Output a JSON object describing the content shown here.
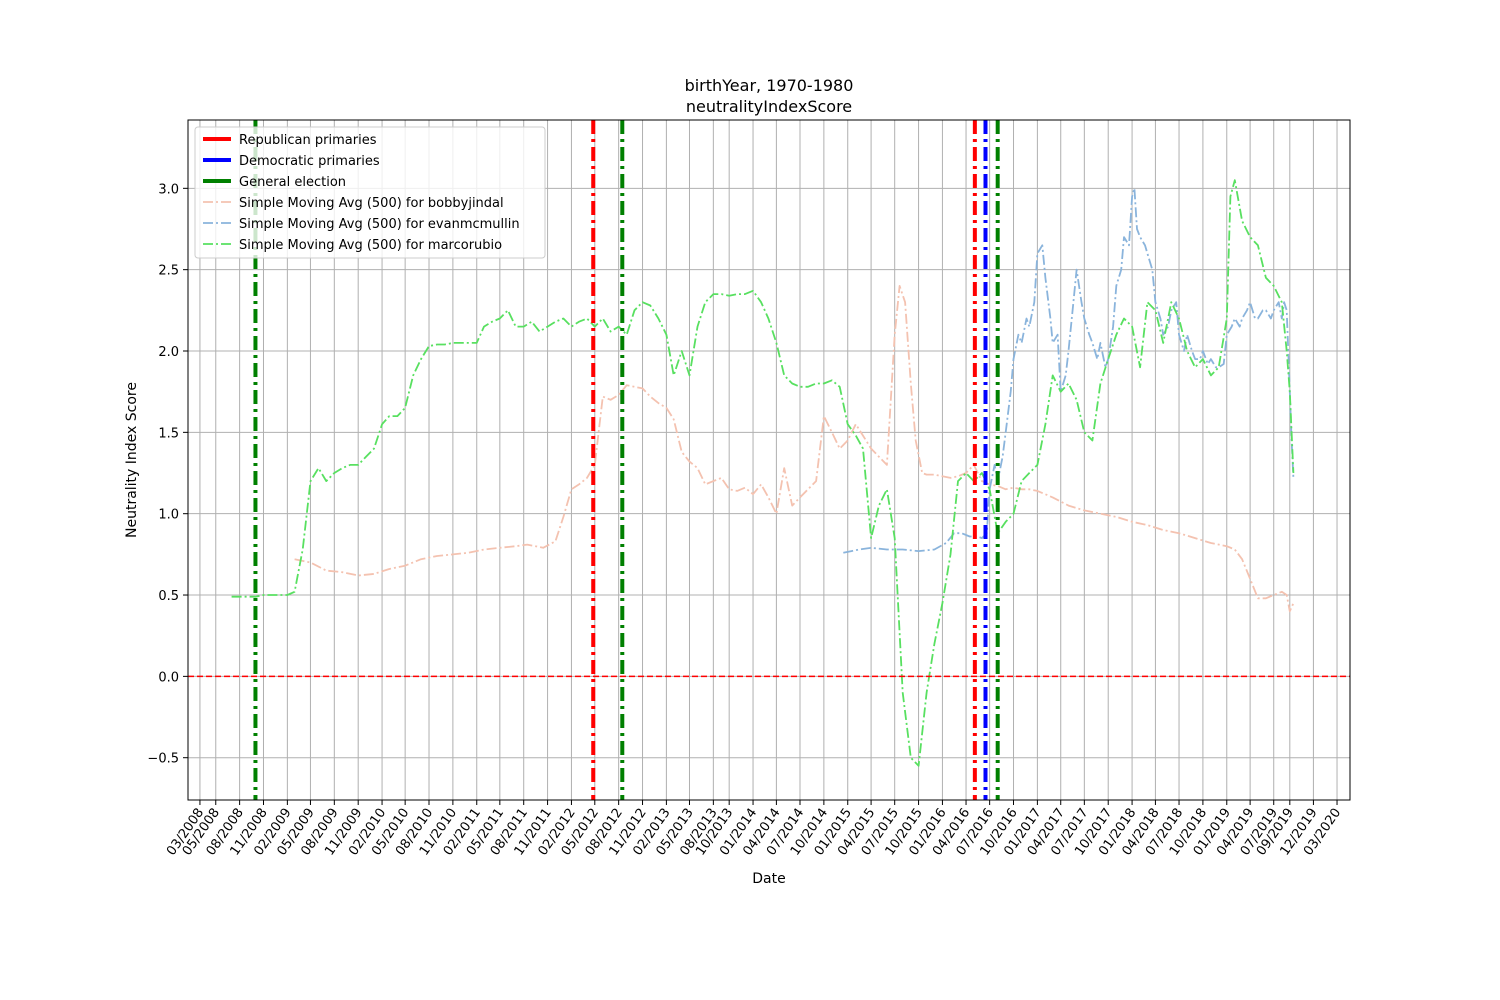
{
  "chart_data": {
    "type": "line",
    "title": "birthYear, 1970-1980",
    "subtitle": "neutralityIndexScore",
    "xlabel": "Date",
    "ylabel": "Neutrality Index Score",
    "ylim": [
      -0.76,
      3.42
    ],
    "yticks": [
      -0.5,
      0.0,
      0.5,
      1.0,
      1.5,
      2.0,
      2.5,
      3.0
    ],
    "ytick_labels": [
      "−0.5",
      "0.0",
      "0.5",
      "1.0",
      "1.5",
      "2.0",
      "2.5",
      "3.0"
    ],
    "xlim": [
      "2008-01-15",
      "2020-04-20"
    ],
    "xticks": [
      "2008-03-01",
      "2008-05-01",
      "2008-08-01",
      "2008-11-01",
      "2009-02-01",
      "2009-05-01",
      "2009-08-01",
      "2009-11-01",
      "2010-02-01",
      "2010-05-01",
      "2010-08-01",
      "2010-11-01",
      "2011-02-01",
      "2011-05-01",
      "2011-08-01",
      "2011-11-01",
      "2012-02-01",
      "2012-05-01",
      "2012-08-01",
      "2012-11-01",
      "2013-02-01",
      "2013-05-01",
      "2013-08-01",
      "2013-10-01",
      "2014-01-01",
      "2014-04-01",
      "2014-07-01",
      "2014-10-01",
      "2015-01-01",
      "2015-04-01",
      "2015-07-01",
      "2015-10-01",
      "2016-01-01",
      "2016-04-01",
      "2016-07-01",
      "2016-10-01",
      "2017-01-01",
      "2017-04-01",
      "2017-07-01",
      "2017-10-01",
      "2018-01-01",
      "2018-04-01",
      "2018-07-01",
      "2018-10-01",
      "2019-01-01",
      "2019-04-01",
      "2019-07-01",
      "2019-09-01",
      "2019-12-01",
      "2020-03-01"
    ],
    "xtick_labels": [
      "03/2008",
      "05/2008",
      "08/2008",
      "11/2008",
      "02/2009",
      "05/2009",
      "08/2009",
      "11/2009",
      "02/2010",
      "05/2010",
      "08/2010",
      "11/2010",
      "02/2011",
      "05/2011",
      "08/2011",
      "11/2011",
      "02/2012",
      "05/2012",
      "08/2012",
      "11/2012",
      "02/2013",
      "05/2013",
      "08/2013",
      "10/2013",
      "01/2014",
      "04/2014",
      "07/2014",
      "10/2014",
      "01/2015",
      "04/2015",
      "07/2015",
      "10/2015",
      "01/2016",
      "04/2016",
      "07/2016",
      "10/2016",
      "01/2017",
      "04/2017",
      "07/2017",
      "10/2017",
      "01/2018",
      "04/2018",
      "07/2018",
      "10/2018",
      "01/2019",
      "04/2019",
      "07/2019",
      "09/2019",
      "12/2019",
      "03/2020"
    ],
    "grid": true,
    "legend_position": "upper-left",
    "zero_line": {
      "y": 0.0,
      "color": "#ff0000",
      "style": "dashed"
    },
    "events": [
      {
        "name": "Republican primaries",
        "color": "#ff0000",
        "dates": [
          "2012-04-25",
          "2016-05-05"
        ]
      },
      {
        "name": "Democratic primaries",
        "color": "#0000ff",
        "dates": [
          "2016-06-15"
        ]
      },
      {
        "name": "General election",
        "color": "#008000",
        "dates": [
          "2008-10-01",
          "2012-08-15",
          "2016-08-01"
        ]
      }
    ],
    "series": [
      {
        "name": "Simple Moving Avg (500) for bobbyjindal",
        "color": "#f4c2b0",
        "x": [
          "2009-03-01",
          "2009-05-01",
          "2009-07-01",
          "2009-09-01",
          "2009-11-01",
          "2010-01-01",
          "2010-03-01",
          "2010-05-01",
          "2010-07-01",
          "2010-09-01",
          "2010-11-01",
          "2011-01-01",
          "2011-03-01",
          "2011-05-01",
          "2011-07-01",
          "2011-08-15",
          "2011-09-15",
          "2011-10-15",
          "2011-12-01",
          "2012-01-01",
          "2012-02-01",
          "2012-03-01",
          "2012-04-01",
          "2012-05-01",
          "2012-06-01",
          "2012-07-01",
          "2012-08-01",
          "2012-09-01",
          "2012-10-01",
          "2012-11-01",
          "2012-12-01",
          "2013-01-01",
          "2013-02-01",
          "2013-03-01",
          "2013-04-01",
          "2013-05-01",
          "2013-06-01",
          "2013-07-01",
          "2013-08-01",
          "2013-09-01",
          "2013-10-01",
          "2013-11-01",
          "2013-12-01",
          "2014-01-01",
          "2014-02-01",
          "2014-03-01",
          "2014-04-01",
          "2014-05-01",
          "2014-06-01",
          "2014-07-01",
          "2014-08-01",
          "2014-09-01",
          "2014-10-01",
          "2014-11-01",
          "2014-12-01",
          "2015-01-01",
          "2015-02-01",
          "2015-03-01",
          "2015-04-01",
          "2015-05-01",
          "2015-06-01",
          "2015-07-01",
          "2015-07-20",
          "2015-08-10",
          "2015-09-01",
          "2015-09-20",
          "2015-10-15",
          "2015-11-01",
          "2015-12-01",
          "2016-01-01",
          "2016-02-01",
          "2016-03-01",
          "2016-04-01",
          "2016-05-01",
          "2016-06-01",
          "2016-07-01",
          "2016-08-01",
          "2016-09-01",
          "2016-10-01",
          "2016-11-01",
          "2016-12-01",
          "2017-01-01",
          "2017-03-01",
          "2017-05-01",
          "2017-07-01",
          "2017-09-01",
          "2017-11-01",
          "2018-01-01",
          "2018-03-01",
          "2018-05-01",
          "2018-07-01",
          "2018-09-01",
          "2018-11-01",
          "2019-01-01",
          "2019-02-01",
          "2019-03-01",
          "2019-04-01",
          "2019-05-01",
          "2019-06-01",
          "2019-07-01",
          "2019-08-01",
          "2019-08-20",
          "2019-09-01",
          "2019-09-15"
        ],
        "values": [
          0.72,
          0.7,
          0.65,
          0.64,
          0.62,
          0.63,
          0.66,
          0.68,
          0.72,
          0.74,
          0.75,
          0.76,
          0.78,
          0.79,
          0.8,
          0.81,
          0.8,
          0.79,
          0.83,
          0.98,
          1.15,
          1.18,
          1.22,
          1.3,
          1.72,
          1.7,
          1.73,
          1.79,
          1.78,
          1.77,
          1.72,
          1.68,
          1.65,
          1.58,
          1.38,
          1.32,
          1.28,
          1.18,
          1.2,
          1.22,
          1.15,
          1.14,
          1.16,
          1.12,
          1.18,
          1.1,
          1.0,
          1.28,
          1.05,
          1.1,
          1.15,
          1.2,
          1.6,
          1.5,
          1.4,
          1.45,
          1.55,
          1.48,
          1.4,
          1.35,
          1.3,
          2.1,
          2.4,
          2.3,
          1.8,
          1.45,
          1.25,
          1.24,
          1.24,
          1.23,
          1.22,
          1.23,
          1.25,
          1.3,
          1.2,
          1.18,
          1.17,
          1.15,
          1.16,
          1.15,
          1.15,
          1.14,
          1.1,
          1.05,
          1.02,
          1.0,
          0.98,
          0.95,
          0.93,
          0.9,
          0.88,
          0.85,
          0.82,
          0.8,
          0.78,
          0.72,
          0.6,
          0.48,
          0.48,
          0.5,
          0.52,
          0.5,
          0.4,
          0.45
        ]
      },
      {
        "name": "Simple Moving Avg (500) for evanmcmullin",
        "color": "#8ab4dc",
        "x": [
          "2014-12-15",
          "2015-01-15",
          "2015-02-15",
          "2015-04-01",
          "2015-06-01",
          "2015-08-01",
          "2015-10-01",
          "2015-12-01",
          "2016-01-15",
          "2016-02-15",
          "2016-03-15",
          "2016-04-15",
          "2016-05-15",
          "2016-06-01",
          "2016-06-20",
          "2016-07-01",
          "2016-07-20",
          "2016-08-01",
          "2016-08-20",
          "2016-09-01",
          "2016-09-20",
          "2016-10-01",
          "2016-10-20",
          "2016-11-01",
          "2016-11-20",
          "2016-12-01",
          "2016-12-20",
          "2017-01-01",
          "2017-01-20",
          "2017-02-01",
          "2017-02-20",
          "2017-03-01",
          "2017-03-20",
          "2017-04-01",
          "2017-04-20",
          "2017-05-01",
          "2017-05-20",
          "2017-06-01",
          "2017-06-20",
          "2017-07-01",
          "2017-07-20",
          "2017-08-01",
          "2017-08-20",
          "2017-09-01",
          "2017-09-20",
          "2017-10-01",
          "2017-10-20",
          "2017-11-01",
          "2017-11-20",
          "2017-12-01",
          "2017-12-20",
          "2018-01-01",
          "2018-01-10",
          "2018-01-20",
          "2018-02-01",
          "2018-02-20",
          "2018-03-01",
          "2018-03-20",
          "2018-04-01",
          "2018-04-20",
          "2018-05-01",
          "2018-05-20",
          "2018-06-01",
          "2018-06-20",
          "2018-07-01",
          "2018-07-20",
          "2018-08-01",
          "2018-08-20",
          "2018-09-01",
          "2018-09-20",
          "2018-10-01",
          "2018-10-20",
          "2018-11-01",
          "2018-11-20",
          "2018-12-01",
          "2018-12-20",
          "2019-01-01",
          "2019-01-20",
          "2019-02-01",
          "2019-02-20",
          "2019-03-01",
          "2019-03-20",
          "2019-04-01",
          "2019-04-20",
          "2019-05-01",
          "2019-05-20",
          "2019-06-01",
          "2019-06-20",
          "2019-07-01",
          "2019-07-20",
          "2019-08-01",
          "2019-08-10",
          "2019-08-20",
          "2019-09-01",
          "2019-09-08",
          "2019-09-15"
        ],
        "values": [
          0.76,
          0.77,
          0.78,
          0.79,
          0.78,
          0.78,
          0.77,
          0.78,
          0.82,
          0.88,
          0.88,
          0.86,
          0.86,
          0.85,
          0.88,
          1.15,
          1.3,
          1.2,
          1.35,
          1.5,
          1.75,
          1.95,
          2.1,
          2.05,
          2.2,
          2.15,
          2.3,
          2.6,
          2.65,
          2.45,
          2.2,
          2.05,
          2.1,
          1.75,
          1.85,
          2.0,
          2.3,
          2.5,
          2.3,
          2.2,
          2.1,
          2.05,
          1.95,
          2.05,
          1.9,
          1.95,
          2.15,
          2.4,
          2.5,
          2.7,
          2.65,
          2.95,
          3.0,
          2.75,
          2.7,
          2.65,
          2.6,
          2.5,
          2.3,
          2.2,
          2.1,
          2.15,
          2.25,
          2.3,
          2.1,
          2.0,
          2.1,
          2.0,
          1.95,
          1.95,
          2.0,
          1.92,
          1.95,
          1.9,
          1.9,
          1.92,
          2.1,
          2.15,
          2.2,
          2.15,
          2.2,
          2.25,
          2.3,
          2.2,
          2.2,
          2.25,
          2.25,
          2.2,
          2.25,
          2.3,
          2.2,
          2.3,
          2.25,
          1.75,
          1.45,
          1.22
        ]
      },
      {
        "name": "Simple Moving Avg (500) for marcorubio",
        "color": "#58e060",
        "x": [
          "2008-07-01",
          "2008-08-01",
          "2008-09-01",
          "2008-10-01",
          "2008-11-01",
          "2008-12-01",
          "2009-01-01",
          "2009-02-01",
          "2009-03-01",
          "2009-04-01",
          "2009-05-01",
          "2009-06-01",
          "2009-07-01",
          "2009-08-01",
          "2009-09-01",
          "2009-10-01",
          "2009-11-01",
          "2009-12-01",
          "2010-01-01",
          "2010-02-01",
          "2010-03-01",
          "2010-04-01",
          "2010-05-01",
          "2010-06-01",
          "2010-07-01",
          "2010-08-01",
          "2010-09-01",
          "2010-10-01",
          "2010-11-01",
          "2011-01-01",
          "2011-02-01",
          "2011-03-01",
          "2011-04-01",
          "2011-05-01",
          "2011-06-01",
          "2011-07-01",
          "2011-08-01",
          "2011-09-01",
          "2011-10-01",
          "2011-11-01",
          "2011-12-01",
          "2012-01-01",
          "2012-02-01",
          "2012-03-01",
          "2012-04-01",
          "2012-05-01",
          "2012-06-01",
          "2012-07-01",
          "2012-08-01",
          "2012-09-01",
          "2012-10-01",
          "2012-11-01",
          "2012-12-01",
          "2013-01-01",
          "2013-02-01",
          "2013-03-01",
          "2013-04-01",
          "2013-05-01",
          "2013-06-01",
          "2013-07-01",
          "2013-08-01",
          "2013-09-01",
          "2013-10-01",
          "2013-11-01",
          "2013-12-01",
          "2014-01-01",
          "2014-02-01",
          "2014-03-01",
          "2014-04-01",
          "2014-05-01",
          "2014-06-01",
          "2014-07-01",
          "2014-08-01",
          "2014-09-01",
          "2014-10-01",
          "2014-11-01",
          "2014-12-01",
          "2015-01-01",
          "2015-02-01",
          "2015-03-01",
          "2015-04-01",
          "2015-05-01",
          "2015-06-01",
          "2015-07-01",
          "2015-08-01",
          "2015-09-01",
          "2015-10-01",
          "2015-11-01",
          "2015-12-01",
          "2016-01-01",
          "2016-02-01",
          "2016-03-01",
          "2016-04-01",
          "2016-05-01",
          "2016-06-01",
          "2016-07-01",
          "2016-08-01",
          "2016-09-01",
          "2016-10-01",
          "2016-11-01",
          "2016-12-01",
          "2017-01-01",
          "2017-02-01",
          "2017-03-01",
          "2017-04-01",
          "2017-05-01",
          "2017-06-01",
          "2017-07-01",
          "2017-08-01",
          "2017-09-01",
          "2017-10-01",
          "2017-11-01",
          "2017-12-01",
          "2018-01-01",
          "2018-02-01",
          "2018-03-01",
          "2018-04-01",
          "2018-05-01",
          "2018-06-01",
          "2018-07-01",
          "2018-08-01",
          "2018-09-01",
          "2018-10-01",
          "2018-11-01",
          "2018-12-01",
          "2019-01-01",
          "2019-01-15",
          "2019-02-01",
          "2019-03-01",
          "2019-04-01",
          "2019-05-01",
          "2019-06-01",
          "2019-07-01",
          "2019-08-01",
          "2019-08-20",
          "2019-09-01",
          "2019-09-15"
        ],
        "values": [
          0.49,
          0.49,
          0.49,
          0.49,
          0.5,
          0.5,
          0.5,
          0.5,
          0.52,
          0.78,
          1.2,
          1.28,
          1.2,
          1.25,
          1.28,
          1.3,
          1.3,
          1.35,
          1.4,
          1.55,
          1.6,
          1.6,
          1.65,
          1.85,
          1.95,
          2.03,
          2.04,
          2.04,
          2.05,
          2.05,
          2.05,
          2.15,
          2.18,
          2.2,
          2.25,
          2.15,
          2.15,
          2.18,
          2.12,
          2.15,
          2.18,
          2.2,
          2.15,
          2.18,
          2.2,
          2.15,
          2.2,
          2.12,
          2.15,
          2.1,
          2.25,
          2.3,
          2.28,
          2.2,
          2.1,
          1.85,
          2.0,
          1.85,
          2.15,
          2.3,
          2.35,
          2.35,
          2.34,
          2.35,
          2.35,
          2.37,
          2.3,
          2.2,
          2.05,
          1.85,
          1.8,
          1.78,
          1.78,
          1.8,
          1.8,
          1.82,
          1.78,
          1.55,
          1.48,
          1.4,
          0.85,
          1.05,
          1.15,
          0.85,
          -0.1,
          -0.5,
          -0.55,
          -0.1,
          0.2,
          0.45,
          0.75,
          1.2,
          1.25,
          1.2,
          1.25,
          1.15,
          0.88,
          0.95,
          1.0,
          1.2,
          1.25,
          1.3,
          1.55,
          1.85,
          1.75,
          1.8,
          1.7,
          1.5,
          1.45,
          1.8,
          1.95,
          2.1,
          2.2,
          2.15,
          1.9,
          2.3,
          2.25,
          2.05,
          2.3,
          2.2,
          2.0,
          1.9,
          1.95,
          1.85,
          1.9,
          2.2,
          2.95,
          3.05,
          2.8,
          2.7,
          2.65,
          2.45,
          2.4,
          2.3,
          2.0,
          1.75,
          1.25
        ]
      }
    ]
  }
}
